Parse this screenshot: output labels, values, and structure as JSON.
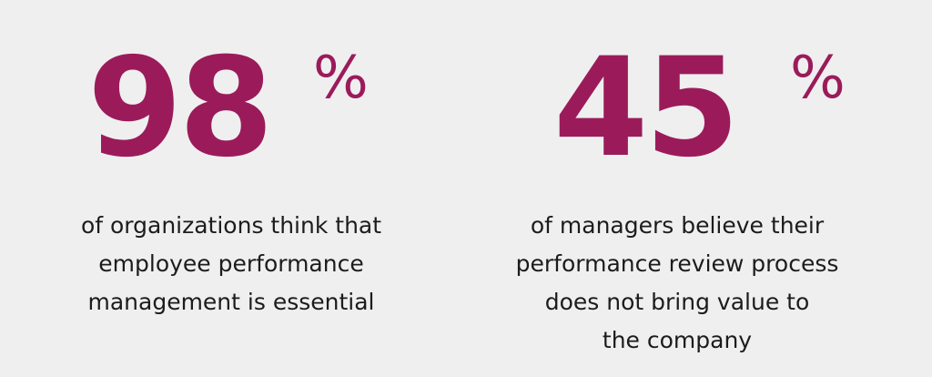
{
  "stats": [
    {
      "number": "98",
      "unit": "%",
      "caption_lines": [
        "of organizations think that",
        "employee performance",
        "management is essential"
      ]
    },
    {
      "number": "45",
      "unit": "%",
      "caption_lines": [
        "of managers believe their",
        "performance review process",
        "does not bring value to",
        "the company"
      ]
    }
  ],
  "colors": {
    "accent": "#9b1b5a",
    "text": "#1c1c1c",
    "background": "#efefef"
  }
}
